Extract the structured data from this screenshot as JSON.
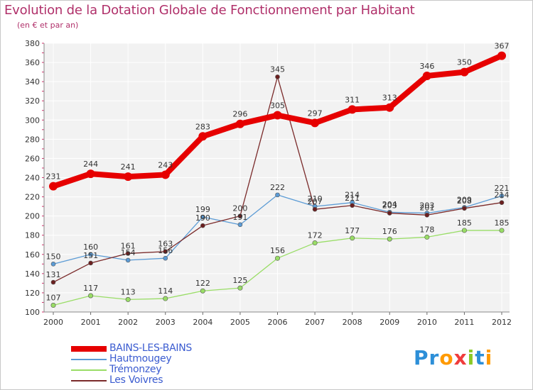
{
  "title": "Evolution de la Dotation Globale de Fonctionnement par Habitant",
  "subtitle": "(en € et par an)",
  "logo": {
    "p": "Pr",
    "o": "o",
    "x": "x",
    "i": "i",
    "t": "t",
    "i2": "i",
    "colors": [
      "#2d8fd8",
      "#ff9a00",
      "#f03c3c",
      "#8ac926",
      "#2d8fd8"
    ]
  },
  "chart_data": {
    "type": "line",
    "title": "Evolution de la Dotation Globale de Fonctionnement par Habitant",
    "subtitle": "(en € et par an)",
    "xlabel": "",
    "ylabel": "",
    "ylim": [
      100,
      380
    ],
    "yticks": [
      100,
      120,
      140,
      160,
      180,
      200,
      220,
      240,
      260,
      280,
      300,
      320,
      340,
      360,
      380
    ],
    "categories": [
      "2000",
      "2001",
      "2002",
      "2003",
      "2004",
      "2005",
      "2006",
      "2007",
      "2008",
      "2009",
      "2010",
      "2011",
      "2012"
    ],
    "grid": true,
    "legend_position": "bottom-left",
    "series": [
      {
        "name": "BAINS-LES-BAINS",
        "color": "#e60000",
        "values": [
          231,
          244,
          241,
          243,
          283,
          296,
          305,
          297,
          311,
          313,
          346,
          350,
          367
        ]
      },
      {
        "name": "Hautmougey",
        "color": "#5b9bd5",
        "values": [
          150,
          160,
          154,
          156,
          199,
          191,
          222,
          210,
          214,
          204,
          203,
          209,
          221
        ]
      },
      {
        "name": "Trémonzey",
        "color": "#99dd66",
        "values": [
          107,
          117,
          113,
          114,
          122,
          125,
          156,
          172,
          177,
          176,
          178,
          185,
          185
        ]
      },
      {
        "name": "Les Voivres",
        "color": "#7a2a2a",
        "values": [
          131,
          151,
          161,
          163,
          190,
          200,
          345,
          207,
          211,
          203,
          201,
          208,
          214
        ]
      }
    ]
  }
}
